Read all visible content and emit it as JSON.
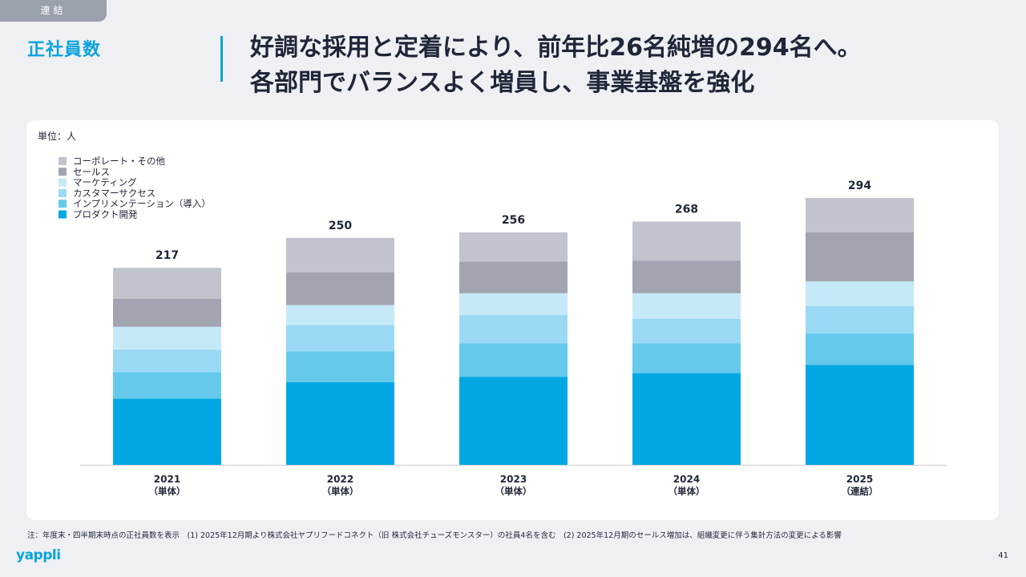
{
  "tag": "連結",
  "section_title": "正社員数",
  "headline": {
    "line1": "好調な採用と定着により、前年比26名純増の294名へ。",
    "line2": "各部門でバランスよく増員し、事業基盤を強化"
  },
  "footnote": "注：年度末・四半期末時点の正社員数を表示　(1) 2025年12月期より株式会社ヤプリフードコネクト（旧 株式会社チューズモンスター）の社員4名を含む　(2) 2025年12月期のセールス増加は、組織変更に伴う集計方法の変更による影響",
  "logo": "yappli",
  "page_number": "41",
  "colors": {
    "accent": "#0aa3dc",
    "series": [
      "#00a7e3",
      "#65c9ec",
      "#99d9f3",
      "#c6e9f8",
      "#a2a5b1",
      "#c1c4cd"
    ]
  },
  "chart_data": {
    "type": "bar",
    "stacked": true,
    "unit_label": "単位：人",
    "categories": [
      "2021",
      "2022",
      "2023",
      "2024",
      "2025"
    ],
    "category_sublabels": [
      "（単体）",
      "（単体）",
      "（単体）",
      "（単体）",
      "（連結）"
    ],
    "totals": [
      217,
      250,
      256,
      268,
      294
    ],
    "series": [
      {
        "name": "プロダクト開発",
        "values": [
          73,
          91,
          97,
          101,
          110
        ]
      },
      {
        "name": "インプリメンテーション（導入）",
        "values": [
          29,
          34,
          37,
          33,
          35
        ]
      },
      {
        "name": "カスタマーサクセス",
        "values": [
          25,
          29,
          31,
          27,
          30
        ]
      },
      {
        "name": "マーケティング",
        "values": [
          25,
          22,
          24,
          28,
          27
        ]
      },
      {
        "name": "セールス",
        "values": [
          31,
          36,
          35,
          36,
          54
        ]
      },
      {
        "name": "コーポレート・その他",
        "values": [
          34,
          38,
          32,
          43,
          38
        ]
      }
    ],
    "legend_order": [
      "コーポレート・その他",
      "セールス",
      "マーケティング",
      "カスタマーサクセス",
      "インプリメンテーション（導入）",
      "プロダクト開発"
    ],
    "legend_position": "top-left",
    "ylim": [
      0,
      294
    ],
    "grid": false
  }
}
